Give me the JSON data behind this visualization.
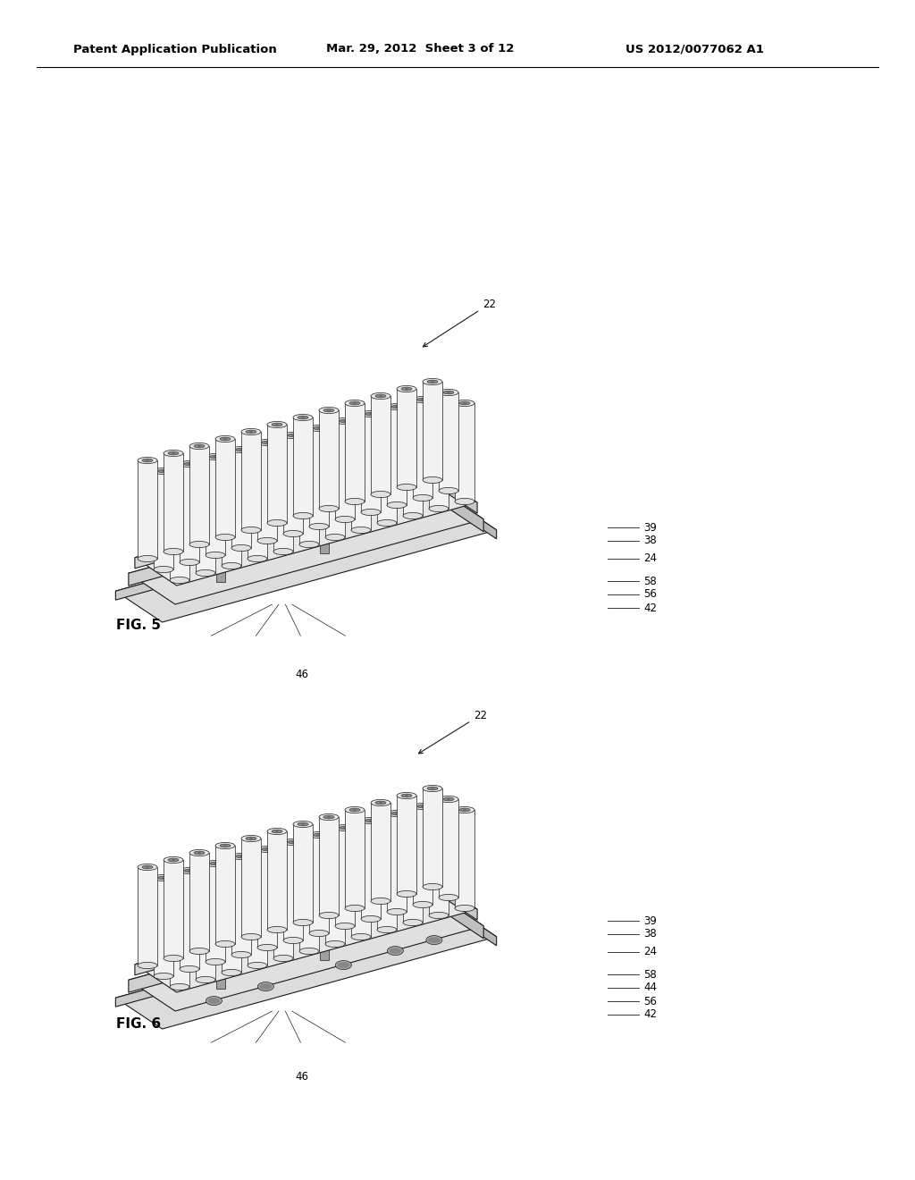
{
  "background_color": "#ffffff",
  "header_text1": "Patent Application Publication",
  "header_text2": "Mar. 29, 2012  Sheet 3 of 12",
  "header_text3": "US 2012/0077062 A1",
  "line_color": "#1a1a1a",
  "fig5_label": "FIG. 5",
  "fig6_label": "FIG. 6",
  "header_fontsize": 9.5,
  "ref_fontsize": 8.5,
  "fig_label_fontsize": 11
}
